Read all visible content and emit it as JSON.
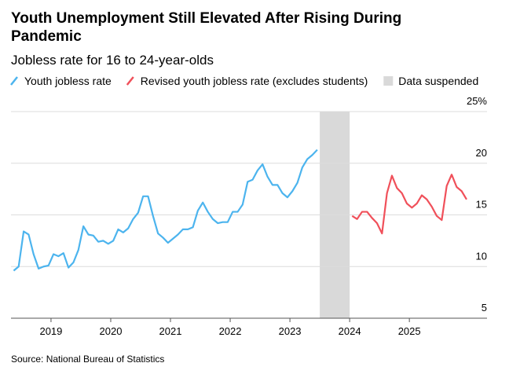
{
  "chart_data": {
    "type": "line",
    "title": "Youth Unemployment Still Elevated After Rising During Pandemic",
    "subtitle": "Jobless rate for 16 to 24-year-olds",
    "source": "Source: National Bureau of Statistics",
    "xlim": [
      2018.33,
      2026.3
    ],
    "xticks": [
      2019,
      2020,
      2021,
      2022,
      2023,
      2024,
      2025
    ],
    "ylim": [
      5,
      25
    ],
    "yticks": [
      5,
      10,
      15,
      20,
      {
        "value": 25,
        "label": "25%"
      }
    ],
    "grid": true,
    "shaded": {
      "label": "Data suspended",
      "range": [
        2023.5,
        2024.0
      ],
      "color": "#d9d9d9"
    },
    "series": [
      {
        "name": "Youth jobless rate",
        "color": "#4cb4ee",
        "x": [
          2018.375,
          2018.458,
          2018.542,
          2018.625,
          2018.708,
          2018.792,
          2018.875,
          2018.958,
          2019.042,
          2019.125,
          2019.208,
          2019.292,
          2019.375,
          2019.458,
          2019.542,
          2019.625,
          2019.708,
          2019.792,
          2019.875,
          2019.958,
          2020.042,
          2020.125,
          2020.208,
          2020.292,
          2020.375,
          2020.458,
          2020.542,
          2020.625,
          2020.708,
          2020.792,
          2020.875,
          2020.958,
          2021.042,
          2021.125,
          2021.208,
          2021.292,
          2021.375,
          2021.458,
          2021.542,
          2021.625,
          2021.708,
          2021.792,
          2021.875,
          2021.958,
          2022.042,
          2022.125,
          2022.208,
          2022.292,
          2022.375,
          2022.458,
          2022.542,
          2022.625,
          2022.708,
          2022.792,
          2022.875,
          2022.958,
          2023.042,
          2023.125,
          2023.208,
          2023.292,
          2023.375,
          2023.458
        ],
        "values": [
          9.6,
          10.0,
          13.4,
          13.1,
          11.2,
          9.8,
          10.0,
          10.1,
          11.2,
          11.0,
          11.3,
          9.9,
          10.4,
          11.6,
          13.9,
          13.1,
          13.0,
          12.4,
          12.5,
          12.2,
          12.5,
          13.6,
          13.3,
          13.7,
          14.6,
          15.2,
          16.8,
          16.8,
          14.9,
          13.2,
          12.8,
          12.3,
          12.7,
          13.1,
          13.6,
          13.6,
          13.8,
          15.4,
          16.2,
          15.3,
          14.6,
          14.2,
          14.3,
          14.3,
          15.3,
          15.3,
          16.0,
          18.2,
          18.4,
          19.3,
          19.9,
          18.7,
          17.9,
          17.9,
          17.1,
          16.7,
          17.3,
          18.1,
          19.6,
          20.4,
          20.8,
          21.3
        ]
      },
      {
        "name": "Revised youth jobless rate (excludes students)",
        "color": "#f0505a",
        "x": [
          2024.042,
          2024.125,
          2024.208,
          2024.292,
          2024.375,
          2024.458,
          2024.542,
          2024.625,
          2024.708,
          2024.792,
          2024.875,
          2024.958,
          2025.042,
          2025.125,
          2025.208,
          2025.292,
          2025.375,
          2025.458,
          2025.542,
          2025.625,
          2025.708,
          2025.792,
          2025.875,
          2025.958
        ],
        "values": [
          14.9,
          14.6,
          15.3,
          15.3,
          14.7,
          14.2,
          13.2,
          17.1,
          18.8,
          17.6,
          17.1,
          16.1,
          15.7,
          16.1,
          16.9,
          16.5,
          15.8,
          14.9,
          14.5,
          17.8,
          18.9,
          17.7,
          17.3,
          16.5
        ]
      }
    ]
  }
}
